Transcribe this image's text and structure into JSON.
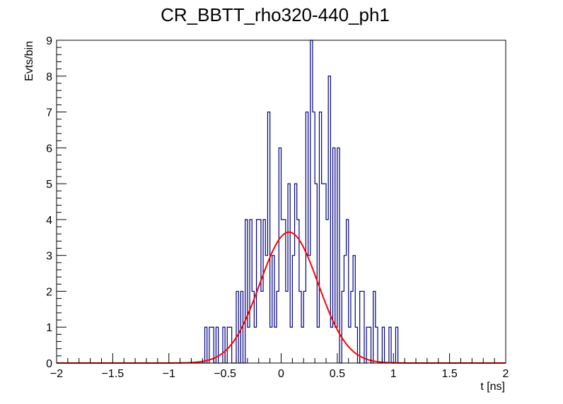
{
  "chart_data": {
    "type": "histogram",
    "title": "CR_BBTT_rho320-440_ph1",
    "xlabel": "t [ns]",
    "ylabel": "Evts/bin",
    "xlim": [
      -2,
      2
    ],
    "ylim": [
      0,
      9
    ],
    "x_ticks": [
      "−2",
      "−1.5",
      "−1",
      "−0.5",
      "0",
      "0.5",
      "1",
      "1.5",
      "2"
    ],
    "y_ticks": [
      "0",
      "1",
      "2",
      "3",
      "4",
      "5",
      "6",
      "7",
      "8",
      "9"
    ],
    "bin_width": 0.02,
    "histogram": {
      "color": "#00007f",
      "x_start": -0.68,
      "counts": [
        1,
        0,
        1,
        1,
        0,
        1,
        0,
        0,
        1,
        0,
        1,
        1,
        0,
        0,
        2,
        0,
        2,
        0,
        4,
        1,
        4,
        2,
        1,
        4,
        4,
        2,
        4,
        3,
        7,
        1,
        3,
        1,
        2,
        6,
        4,
        4,
        2,
        5,
        1,
        3,
        5,
        4,
        2,
        1,
        2,
        7,
        3,
        9,
        7,
        5,
        1,
        7,
        5,
        5,
        4,
        8,
        1,
        6,
        1,
        6,
        0,
        2,
        3,
        4,
        1,
        2,
        3,
        1,
        0,
        2,
        2,
        0,
        1,
        1,
        0,
        2,
        1,
        0,
        0,
        1,
        0,
        0,
        1,
        0,
        0,
        1,
        0,
        0
      ]
    },
    "fit": {
      "type": "gaussian",
      "color": "#ff0000",
      "amplitude": 3.65,
      "mean": 0.07,
      "sigma": 0.26
    }
  }
}
